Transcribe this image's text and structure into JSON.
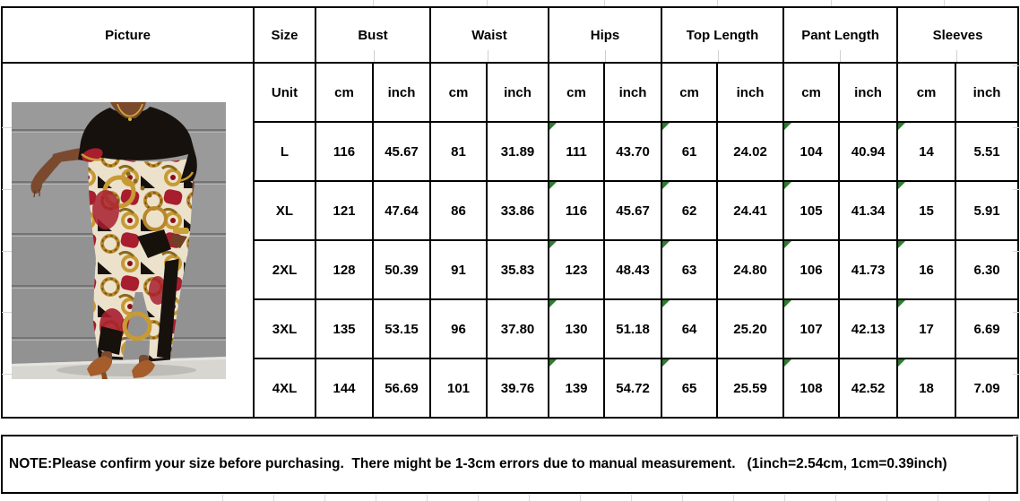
{
  "table": {
    "picture_header": "Picture",
    "size_header": "Size",
    "measure_headers": [
      "Bust",
      "Waist",
      "Hips",
      "Top Length",
      "Pant Length",
      "Sleeves"
    ],
    "unit_label": "Unit",
    "units": [
      "cm",
      "inch",
      "cm",
      "inch",
      "cm",
      "inch",
      "cm",
      "inch",
      "cm",
      "inch",
      "cm",
      "inch"
    ],
    "rows": [
      {
        "size": "L",
        "values": [
          "116",
          "45.67",
          "81",
          "31.89",
          "111",
          "43.70",
          "61",
          "24.02",
          "104",
          "40.94",
          "14",
          "5.51"
        ]
      },
      {
        "size": "XL",
        "values": [
          "121",
          "47.64",
          "86",
          "33.86",
          "116",
          "45.67",
          "62",
          "24.41",
          "105",
          "41.34",
          "15",
          "5.91"
        ]
      },
      {
        "size": "2XL",
        "values": [
          "128",
          "50.39",
          "91",
          "35.83",
          "123",
          "48.43",
          "63",
          "24.80",
          "106",
          "41.73",
          "16",
          "6.30"
        ]
      },
      {
        "size": "3XL",
        "values": [
          "135",
          "53.15",
          "96",
          "37.80",
          "130",
          "51.18",
          "64",
          "25.20",
          "107",
          "42.13",
          "17",
          "6.69"
        ]
      },
      {
        "size": "4XL",
        "values": [
          "144",
          "56.69",
          "101",
          "39.76",
          "139",
          "54.72",
          "65",
          "25.59",
          "108",
          "42.52",
          "18",
          "7.09"
        ]
      }
    ]
  },
  "note": "NOTE:Please confirm your size before purchasing.  There might be 1-3cm errors due to manual measurement.   (1inch=2.54cm, 1cm=0.39inch)",
  "picture": {
    "description": "Model wearing black and gold baroque chain-print short-sleeve top and matching pants"
  },
  "colors": {
    "table_border": "#000000",
    "flag_triangle": "#2e7d32",
    "gridline": "#d8d8d8",
    "wall_gray": "#9a9a9a",
    "floor_gray": "#d8d6d1",
    "skin": "#7b4a2e",
    "outfit_black": "#16110d",
    "outfit_red": "#a81e2e",
    "outfit_gold": "#c0912f",
    "outfit_cream": "#ece2cc"
  }
}
